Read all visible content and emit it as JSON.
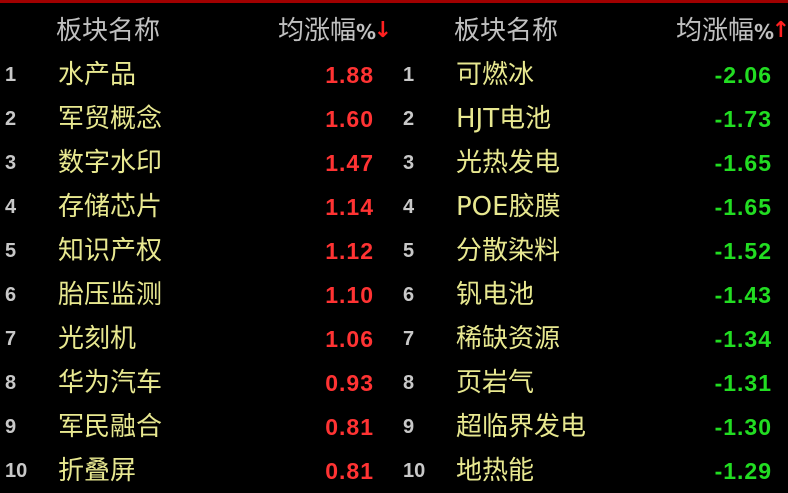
{
  "colors": {
    "up": "#ff3333",
    "down": "#22dd22",
    "name": "#e8e890",
    "header": "#c0c0c0",
    "border": "#a00000"
  },
  "left": {
    "header": {
      "name": "板块名称",
      "value": "均涨幅",
      "pct": "%",
      "sort_icon": "arrow-down-icon",
      "sort_arrow": "↓"
    },
    "rows": [
      {
        "rank": "1",
        "name": "水产品",
        "value": "1.88"
      },
      {
        "rank": "2",
        "name": "军贸概念",
        "value": "1.60"
      },
      {
        "rank": "3",
        "name": "数字水印",
        "value": "1.47"
      },
      {
        "rank": "4",
        "name": "存储芯片",
        "value": "1.14"
      },
      {
        "rank": "5",
        "name": "知识产权",
        "value": "1.12"
      },
      {
        "rank": "6",
        "name": "胎压监测",
        "value": "1.10"
      },
      {
        "rank": "7",
        "name": "光刻机",
        "value": "1.06"
      },
      {
        "rank": "8",
        "name": "华为汽车",
        "value": "0.93"
      },
      {
        "rank": "9",
        "name": "军民融合",
        "value": "0.81"
      },
      {
        "rank": "10",
        "name": "折叠屏",
        "value": "0.81"
      }
    ]
  },
  "right": {
    "header": {
      "name": "板块名称",
      "value": "均涨幅",
      "pct": "%",
      "sort_icon": "arrow-up-icon",
      "sort_arrow": "↑"
    },
    "rows": [
      {
        "rank": "1",
        "name": "可燃冰",
        "value": "-2.06"
      },
      {
        "rank": "2",
        "name": "HJT电池",
        "value": "-1.73"
      },
      {
        "rank": "3",
        "name": "光热发电",
        "value": "-1.65"
      },
      {
        "rank": "4",
        "name": "POE胶膜",
        "value": "-1.65"
      },
      {
        "rank": "5",
        "name": "分散染料",
        "value": "-1.52"
      },
      {
        "rank": "6",
        "name": "钒电池",
        "value": "-1.43"
      },
      {
        "rank": "7",
        "name": "稀缺资源",
        "value": "-1.34"
      },
      {
        "rank": "8",
        "name": "页岩气",
        "value": "-1.31"
      },
      {
        "rank": "9",
        "name": "超临界发电",
        "value": "-1.30"
      },
      {
        "rank": "10",
        "name": "地热能",
        "value": "-1.29"
      }
    ]
  }
}
